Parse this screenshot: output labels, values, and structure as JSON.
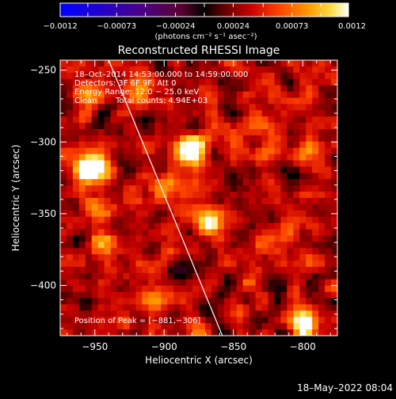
{
  "chart_data": {
    "type": "heatmap",
    "title": "Reconstructed RHESSI Image",
    "xlabel": "Heliocentric X (arcsec)",
    "ylabel": "Heliocentric Y (arcsec)",
    "xlim": [
      -975,
      -775
    ],
    "ylim": [
      -435,
      -243
    ],
    "xticks": [
      {
        "value": -950,
        "label": "−950"
      },
      {
        "value": -900,
        "label": "−900"
      },
      {
        "value": -850,
        "label": "−850"
      },
      {
        "value": -800,
        "label": "−800"
      }
    ],
    "yticks": [
      {
        "value": -250,
        "label": "−250"
      },
      {
        "value": -300,
        "label": "−300"
      },
      {
        "value": -350,
        "label": "−350"
      },
      {
        "value": -400,
        "label": "−400"
      }
    ],
    "colorbar": {
      "min": -0.0012,
      "max": 0.0012,
      "unit_label": "(photons cm⁻² s⁻¹ asec⁻²)",
      "ticks": [
        {
          "value": -0.0012,
          "label": "−0.0012"
        },
        {
          "value": -0.00073,
          "label": "−0.00073"
        },
        {
          "value": -0.00024,
          "label": "−0.00024"
        },
        {
          "value": 0.00024,
          "label": "0.00024"
        },
        {
          "value": 0.00073,
          "label": "0.00073"
        },
        {
          "value": 0.0012,
          "label": "0.0012"
        }
      ]
    },
    "annotations": {
      "time_range": "18–Oct–2014 14:53:00.000 to 14:59:00.000",
      "detectors": "Detectors: 3F 6F 9F, Att 0",
      "energy": "Energy Range: 12.0 − 25.0 keV",
      "clean": "Clean",
      "counts": "Total counts: 4.94E+03",
      "peak": "Position of Peak = [−881,−306]"
    },
    "limb_line": {
      "from": [
        -940,
        -243
      ],
      "to": [
        -858,
        -435
      ]
    },
    "sources": [
      {
        "x": -881,
        "y": -306,
        "amp": 1.0
      },
      {
        "x": -958,
        "y": -320,
        "amp": 0.72
      },
      {
        "x": -945,
        "y": -318,
        "amp": 0.55
      },
      {
        "x": -867,
        "y": -356,
        "amp": 0.55
      },
      {
        "x": -947,
        "y": -345,
        "amp": 0.45
      },
      {
        "x": -944,
        "y": -370,
        "amp": 0.55
      },
      {
        "x": -795,
        "y": -310,
        "amp": 0.45
      },
      {
        "x": -798,
        "y": -428,
        "amp": 0.75
      },
      {
        "x": -808,
        "y": -360,
        "amp": 0.35
      },
      {
        "x": -918,
        "y": -262,
        "amp": 0.35
      },
      {
        "x": -830,
        "y": -290,
        "amp": 0.3
      },
      {
        "x": -900,
        "y": -330,
        "amp": 0.35
      },
      {
        "x": -955,
        "y": -270,
        "amp": 0.35
      },
      {
        "x": -910,
        "y": -410,
        "amp": 0.3
      }
    ]
  },
  "footer": {
    "timestamp": "18–May–2022 08:04"
  }
}
